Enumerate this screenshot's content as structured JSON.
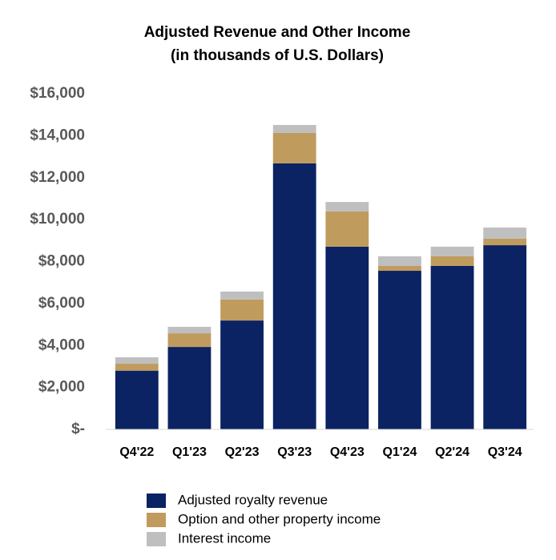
{
  "chart_data": {
    "type": "stacked-bar",
    "title": "Adjusted Revenue and Other Income",
    "subtitle": "(in thousands of U.S. Dollars)",
    "categories": [
      "Q4'22",
      "Q1'23",
      "Q2'23",
      "Q3'23",
      "Q4'23",
      "Q1'24",
      "Q2'24",
      "Q3'24"
    ],
    "series": [
      {
        "name": "Adjusted royalty revenue",
        "color": "#0b2263",
        "values": [
          2800,
          3930,
          5190,
          12680,
          8710,
          7560,
          7790,
          8780
        ]
      },
      {
        "name": "Option and other property income",
        "color": "#bf9b5e",
        "values": [
          330,
          650,
          1000,
          1450,
          1680,
          230,
          460,
          310
        ]
      },
      {
        "name": "Interest income",
        "color": "#bfbfbf",
        "values": [
          310,
          310,
          380,
          380,
          450,
          460,
          460,
          530
        ]
      }
    ],
    "ylim": [
      0,
      16000
    ],
    "yticks": [
      {
        "value": 0,
        "label": "$-"
      },
      {
        "value": 2000,
        "label": "$2,000"
      },
      {
        "value": 4000,
        "label": "$4,000"
      },
      {
        "value": 6000,
        "label": "$6,000"
      },
      {
        "value": 8000,
        "label": "$8,000"
      },
      {
        "value": 10000,
        "label": "$10,000"
      },
      {
        "value": 12000,
        "label": "$12,000"
      },
      {
        "value": 14000,
        "label": "$14,000"
      },
      {
        "value": 16000,
        "label": "$16,000"
      }
    ],
    "grid": false,
    "legend": "bottom"
  }
}
